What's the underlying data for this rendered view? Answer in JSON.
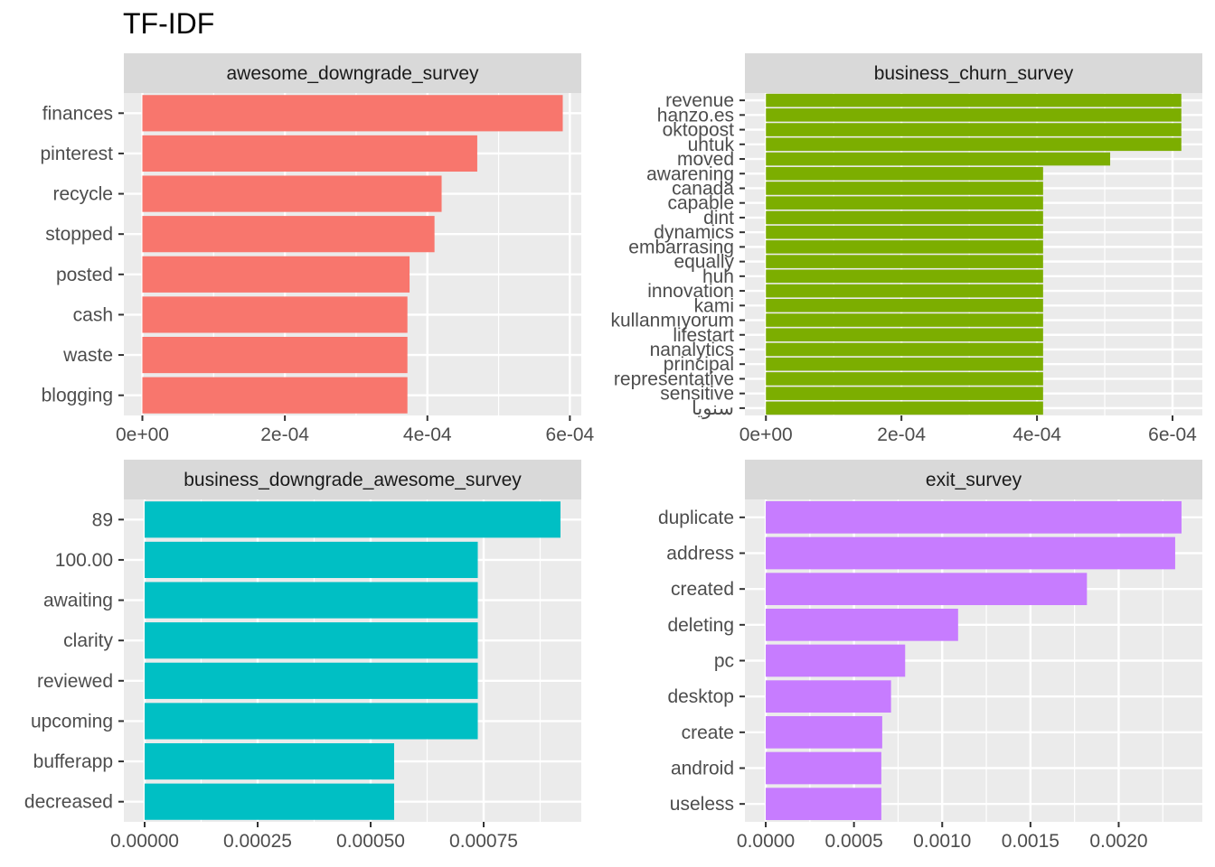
{
  "title": "TF-IDF",
  "style": {
    "panel_bg": "#EBEBEB",
    "strip_bg": "#D9D9D9",
    "grid_color": "#FFFFFF",
    "text_color": "#4D4D4D",
    "strip_text_color": "#1A1A1A"
  },
  "chart_data": [
    {
      "type": "bar",
      "orientation": "horizontal",
      "facet_label": "awesome_downgrade_survey",
      "color": "#F8766D",
      "categories": [
        "finances",
        "pinterest",
        "recycle",
        "stopped",
        "posted",
        "cash",
        "waste",
        "blogging"
      ],
      "values": [
        0.00059,
        0.00047,
        0.00042,
        0.00041,
        0.000375,
        0.000372,
        0.000372,
        0.000372
      ],
      "xlim": [
        -2.6e-05,
        0.000616
      ],
      "ticks": [
        0,
        0.0002,
        0.0004,
        0.0006
      ],
      "tick_labels": [
        "0e+00",
        "2e-04",
        "4e-04",
        "6e-04"
      ]
    },
    {
      "type": "bar",
      "orientation": "horizontal",
      "facet_label": "business_churn_survey",
      "color": "#7CAE00",
      "categories": [
        "revenue",
        "hanzo.es",
        "oktopost",
        "uhtuk",
        "moved",
        "awarening",
        "canada",
        "capable",
        "dint",
        "dynamics",
        "embarrasing",
        "equally",
        "huh",
        "innovation",
        "kami",
        "kullanmıyorum",
        "lifestart",
        "nanalytics",
        "principal",
        "representative",
        "sensitive",
        "سنويا"
      ],
      "values": [
        0.000613,
        0.000613,
        0.000613,
        0.000613,
        0.000508,
        0.000409,
        0.000409,
        0.000409,
        0.000409,
        0.000409,
        0.000409,
        0.000409,
        0.000409,
        0.000409,
        0.000409,
        0.000409,
        0.000409,
        0.000409,
        0.000409,
        0.000409,
        0.000409,
        0.000409
      ],
      "xlim": [
        -3.1e-05,
        0.000644
      ],
      "ticks": [
        0,
        0.0002,
        0.0004,
        0.0006
      ],
      "tick_labels": [
        "0e+00",
        "2e-04",
        "4e-04",
        "6e-04"
      ]
    },
    {
      "type": "bar",
      "orientation": "horizontal",
      "facet_label": "business_downgrade_awesome_survey",
      "color": "#00BFC4",
      "categories": [
        "89",
        "100.00",
        "awaiting",
        "clarity",
        "reviewed",
        "upcoming",
        "bufferapp",
        "decreased"
      ],
      "values": [
        0.00092,
        0.000737,
        0.000737,
        0.000737,
        0.000737,
        0.000737,
        0.000552,
        0.000552
      ],
      "xlim": [
        -4.6e-05,
        0.000966
      ],
      "ticks": [
        0,
        0.00025,
        0.0005,
        0.00075
      ],
      "tick_labels": [
        "0.00000",
        "0.00025",
        "0.00050",
        "0.00075"
      ]
    },
    {
      "type": "bar",
      "orientation": "horizontal",
      "facet_label": "exit_survey",
      "color": "#C77CFF",
      "categories": [
        "duplicate",
        "address",
        "created",
        "deleting",
        "pc",
        "desktop",
        "create",
        "android",
        "useless"
      ],
      "values": [
        0.002356,
        0.00232,
        0.00182,
        0.00109,
        0.00079,
        0.00071,
        0.00066,
        0.000655,
        0.000655
      ],
      "xlim": [
        -0.000118,
        0.002474
      ],
      "ticks": [
        0,
        0.0005,
        0.001,
        0.0015,
        0.002
      ],
      "tick_labels": [
        "0.0000",
        "0.0005",
        "0.0010",
        "0.0015",
        "0.0020"
      ]
    }
  ]
}
